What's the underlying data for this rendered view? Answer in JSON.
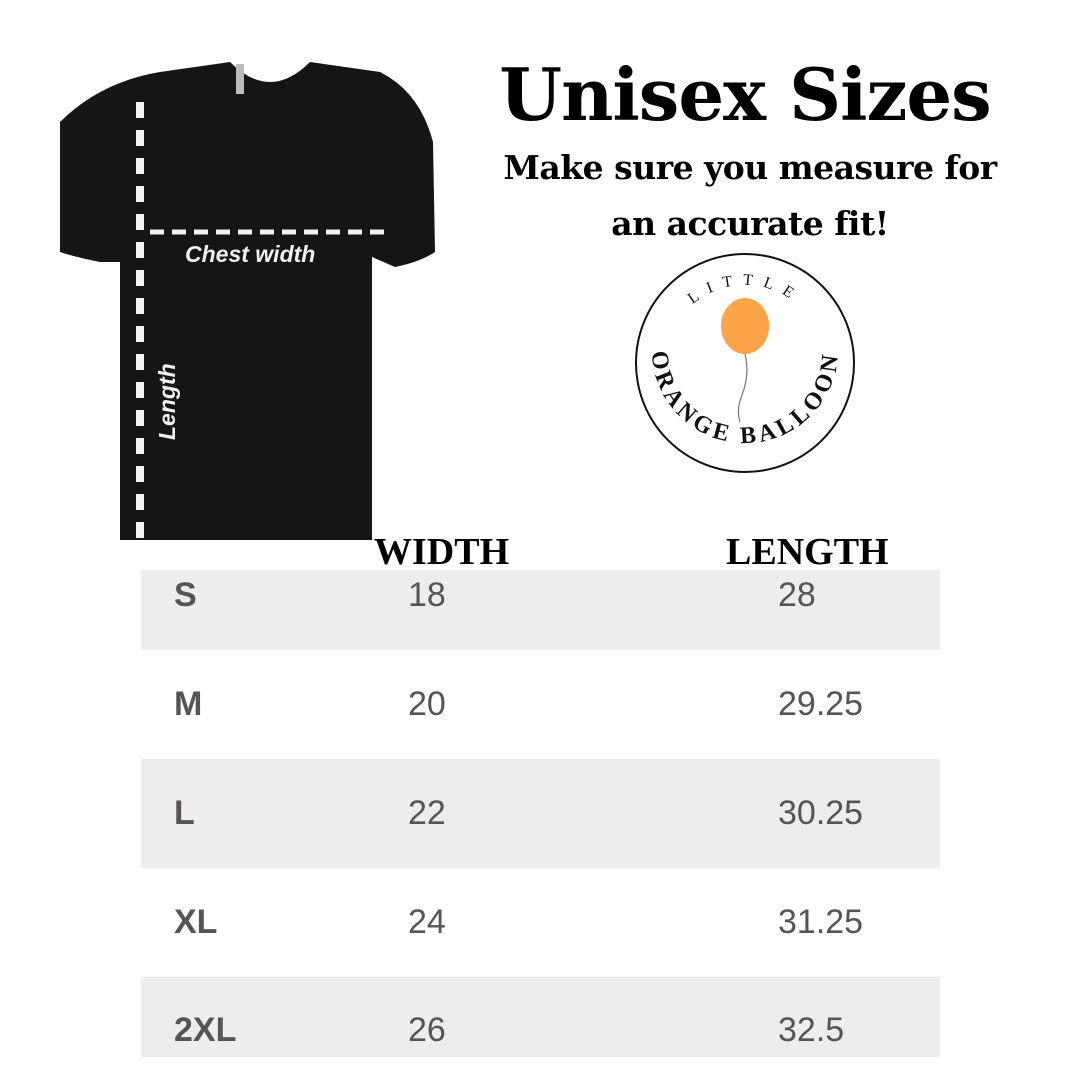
{
  "title": "Unisex Sizes",
  "subtitle_line1": "Make sure you measure for",
  "subtitle_line2": "an accurate fit!",
  "shirt": {
    "chest_label": "Chest width",
    "length_label": "Length"
  },
  "logo": {
    "top_text": "LITTLE",
    "bottom_text": "ORANGE BALLOON",
    "balloon_color": "#fba448"
  },
  "table": {
    "headers": [
      "WIDTH",
      "LENGTH"
    ],
    "rows": [
      {
        "size": "S",
        "width": "18",
        "length": "28"
      },
      {
        "size": "M",
        "width": "20",
        "length": "29.25"
      },
      {
        "size": "L",
        "width": "22",
        "length": "30.25"
      },
      {
        "size": "XL",
        "width": "24",
        "length": "31.25"
      },
      {
        "size": "2XL",
        "width": "26",
        "length": "32.5"
      }
    ]
  }
}
